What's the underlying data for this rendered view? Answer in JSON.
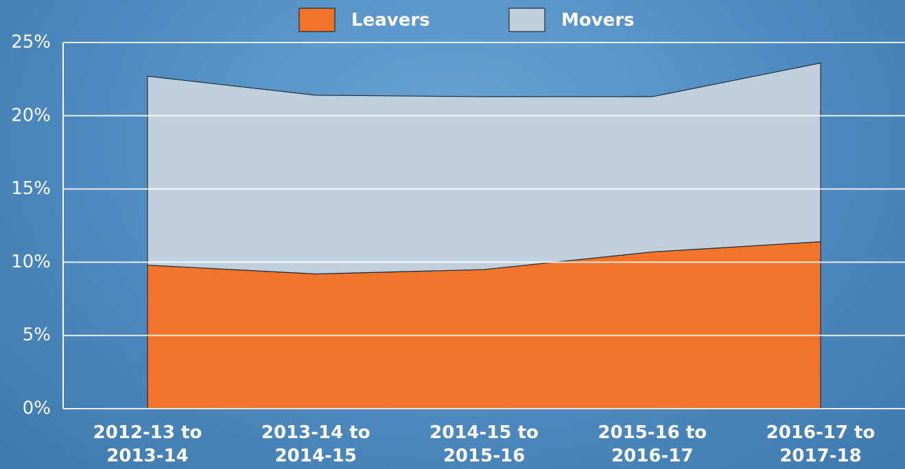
{
  "chart_data": {
    "type": "stacked_area",
    "categories": [
      "2012-13 to 2013-14",
      "2013-14 to 2014-15",
      "2014-15 to 2015-16",
      "2015-16 to 2016-17",
      "2016-17 to 2017-18"
    ],
    "series": [
      {
        "name": "Leavers",
        "color": "#f37329",
        "values": [
          9.8,
          9.2,
          9.5,
          10.7,
          11.4
        ]
      },
      {
        "name": "Movers",
        "color": "#bfcfdc",
        "values": [
          12.9,
          12.2,
          11.8,
          10.6,
          12.2
        ]
      }
    ],
    "ylim": [
      0,
      25
    ],
    "yticks": [
      {
        "value": 0,
        "label": "0%"
      },
      {
        "value": 5,
        "label": "5%"
      },
      {
        "value": 10,
        "label": "10%"
      },
      {
        "value": 15,
        "label": "15%"
      },
      {
        "value": 20,
        "label": "20%"
      },
      {
        "value": 25,
        "label": "25%"
      }
    ],
    "grid": true,
    "legend": "top"
  }
}
